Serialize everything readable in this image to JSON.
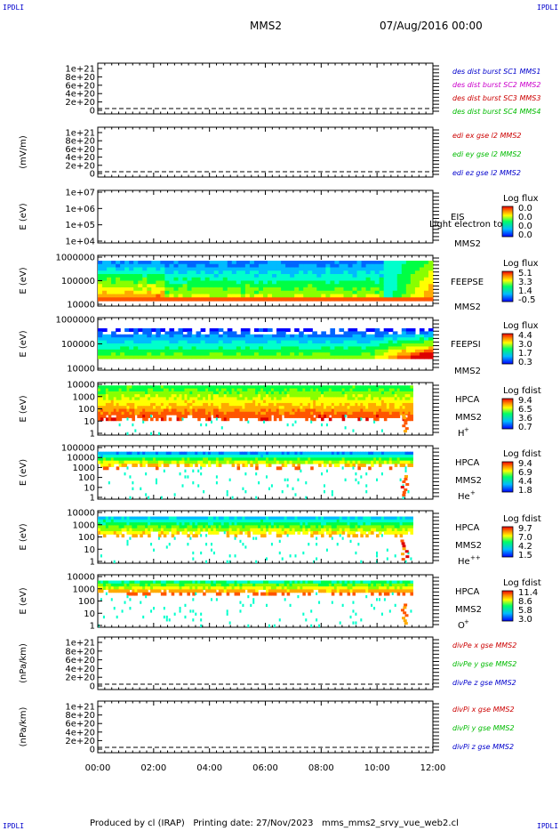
{
  "header": {
    "corner_label": "IPDLI",
    "spacecraft": "MMS2",
    "datetime": "07/Aug/2016 00:00"
  },
  "footer": {
    "text": "Produced by cl (IRAP)   Printing date: 27/Nov/2023   mms_mms2_srvy_vue_web2.cl"
  },
  "colors": {
    "mms1": "#0000cc",
    "mms2": "#cc00cc",
    "mms3": "#cc0000",
    "mms4": "#00bb00",
    "x": "#cc0000",
    "y": "#00bb00",
    "z": "#0000cc"
  },
  "chart_data": [
    {
      "id": "des-dist",
      "type": "line",
      "ylabel": "",
      "yticks": [
        "1e+21",
        "8e+20",
        "6e+20",
        "4e+20",
        "2e+20",
        "0"
      ],
      "legend": [
        {
          "name": "des dist burst SC1 MMS1",
          "color": "#0000cc"
        },
        {
          "name": "des dist burst SC2 MMS2",
          "color": "#cc00cc"
        },
        {
          "name": "des dist burst SC3 MMS3",
          "color": "#cc0000"
        },
        {
          "name": "des dist burst SC4 MMS4",
          "color": "#00bb00"
        }
      ]
    },
    {
      "id": "edi-e",
      "type": "line",
      "ylabel": "(mV/m)",
      "yticks": [
        "1e+21",
        "8e+20",
        "6e+20",
        "4e+20",
        "2e+20",
        "0"
      ],
      "legend": [
        {
          "name": "edi ex gse l2 MMS2",
          "color": "#cc0000"
        },
        {
          "name": "edi ey gse l2 MMS2",
          "color": "#00bb00"
        },
        {
          "name": "edi ez gse l2 MMS2",
          "color": "#0000cc"
        }
      ]
    },
    {
      "id": "eis",
      "type": "heatmap",
      "ylabel": "E (eV)",
      "yscale": "log",
      "yticks": [
        "1e+07",
        "1e+06",
        "1e+05",
        "1e+04"
      ],
      "instrument": "EIS",
      "sc": "MMS2",
      "extra": "Light electron tof",
      "cbar_title": "Log flux",
      "cbar_ticks": [
        "0.0",
        "0.0",
        "0.0",
        "0.0"
      ]
    },
    {
      "id": "feepse",
      "type": "heatmap",
      "ylabel": "E (eV)",
      "yscale": "log",
      "yticks": [
        "1000000",
        "100000",
        "10000"
      ],
      "instrument": "FEEPSE",
      "sc": "MMS2",
      "cbar_title": "Log flux",
      "cbar_ticks": [
        "5.1",
        "3.3",
        "1.4",
        "-0.5"
      ]
    },
    {
      "id": "feepsi",
      "type": "heatmap",
      "ylabel": "E (eV)",
      "yscale": "log",
      "yticks": [
        "1000000",
        "100000",
        "10000"
      ],
      "instrument": "FEEPSI",
      "sc": "MMS2",
      "cbar_title": "Log flux",
      "cbar_ticks": [
        "4.4",
        "3.0",
        "1.7",
        "0.3"
      ]
    },
    {
      "id": "hpca-h",
      "type": "heatmap",
      "ylabel": "E (eV)",
      "yscale": "log",
      "yticks": [
        "10000",
        "1000",
        "100",
        "10",
        "1"
      ],
      "instrument": "HPCA",
      "sc": "MMS2",
      "species": "H",
      "charge": "+",
      "cbar_title": "Log fdist",
      "cbar_ticks": [
        "9.4",
        "6.5",
        "3.6",
        "0.7"
      ]
    },
    {
      "id": "hpca-he",
      "type": "heatmap",
      "ylabel": "E (eV)",
      "yscale": "log",
      "yticks": [
        "100000",
        "10000",
        "1000",
        "100",
        "10",
        "1"
      ],
      "instrument": "HPCA",
      "sc": "MMS2",
      "species": "He",
      "charge": "+",
      "cbar_title": "Log fdist",
      "cbar_ticks": [
        "9.4",
        "6.9",
        "4.4",
        "1.8"
      ]
    },
    {
      "id": "hpca-he2",
      "type": "heatmap",
      "ylabel": "E (eV)",
      "yscale": "log",
      "yticks": [
        "10000",
        "1000",
        "100",
        "10",
        "1"
      ],
      "instrument": "HPCA",
      "sc": "MMS2",
      "species": "He",
      "charge": "++",
      "cbar_title": "Log fdist",
      "cbar_ticks": [
        "9.7",
        "7.0",
        "4.2",
        "1.5"
      ]
    },
    {
      "id": "hpca-o",
      "type": "heatmap",
      "ylabel": "E (eV)",
      "yscale": "log",
      "yticks": [
        "10000",
        "1000",
        "100",
        "10",
        "1"
      ],
      "instrument": "HPCA",
      "sc": "MMS2",
      "species": "O",
      "charge": "+",
      "cbar_title": "Log fdist",
      "cbar_ticks": [
        "11.4",
        "8.6",
        "5.8",
        "3.0"
      ]
    },
    {
      "id": "divpe",
      "type": "line",
      "ylabel": "(nPa/km)",
      "yticks": [
        "1e+21",
        "8e+20",
        "6e+20",
        "4e+20",
        "2e+20",
        "0"
      ],
      "legend": [
        {
          "name": "divPe x gse MMS2",
          "color": "#cc0000"
        },
        {
          "name": "divPe y gse MMS2",
          "color": "#00bb00"
        },
        {
          "name": "divPe z gse MMS2",
          "color": "#0000cc"
        }
      ]
    },
    {
      "id": "divpi",
      "type": "line",
      "ylabel": "(nPa/km)",
      "yticks": [
        "1e+21",
        "8e+20",
        "6e+20",
        "4e+20",
        "2e+20",
        "0"
      ],
      "legend": [
        {
          "name": "divPi x gse MMS2",
          "color": "#cc0000"
        },
        {
          "name": "divPi y gse MMS2",
          "color": "#00bb00"
        },
        {
          "name": "divPi z gse MMS2",
          "color": "#0000cc"
        }
      ]
    }
  ],
  "xaxis": {
    "ticks": [
      "00:00",
      "02:00",
      "04:00",
      "06:00",
      "08:00",
      "10:00",
      "12:00"
    ]
  }
}
